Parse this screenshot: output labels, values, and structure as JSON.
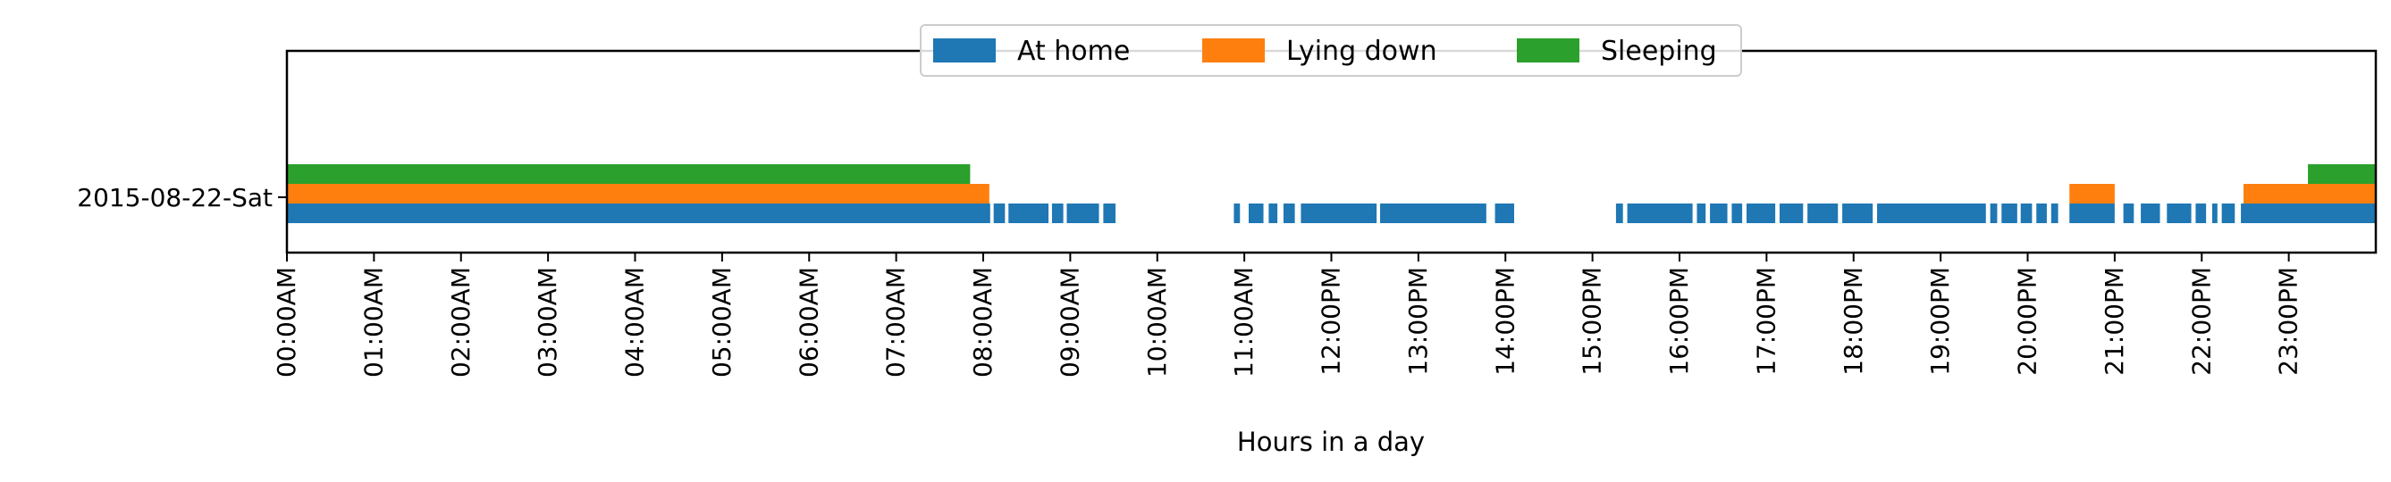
{
  "chart_data": {
    "type": "bar",
    "orientation": "horizontal-timeline",
    "title": "",
    "xlabel": "Hours in a day",
    "ylabel": "",
    "xlim": [
      0,
      24
    ],
    "x_ticks": [
      "00:00AM",
      "01:00AM",
      "02:00AM",
      "03:00AM",
      "04:00AM",
      "05:00AM",
      "06:00AM",
      "07:00AM",
      "08:00AM",
      "09:00AM",
      "10:00AM",
      "11:00AM",
      "12:00PM",
      "13:00PM",
      "14:00PM",
      "15:00PM",
      "16:00PM",
      "17:00PM",
      "18:00PM",
      "19:00PM",
      "20:00PM",
      "21:00PM",
      "22:00PM",
      "23:00PM"
    ],
    "categories": [
      "2015-08-22-Sat"
    ],
    "grid": false,
    "legend_position": "top-center",
    "series": [
      {
        "name": "At home",
        "color": "#1f77b4",
        "intervals": [
          [
            0.0,
            8.08
          ],
          [
            8.12,
            8.25
          ],
          [
            8.29,
            8.75
          ],
          [
            8.79,
            8.92
          ],
          [
            8.96,
            9.33
          ],
          [
            9.38,
            9.52
          ],
          [
            10.88,
            10.95
          ],
          [
            11.05,
            11.22
          ],
          [
            11.28,
            11.38
          ],
          [
            11.45,
            11.58
          ],
          [
            11.65,
            12.52
          ],
          [
            12.56,
            13.78
          ],
          [
            13.88,
            14.1
          ],
          [
            15.27,
            15.35
          ],
          [
            15.4,
            16.15
          ],
          [
            16.2,
            16.3
          ],
          [
            16.35,
            16.55
          ],
          [
            16.6,
            16.72
          ],
          [
            16.77,
            17.1
          ],
          [
            17.15,
            17.42
          ],
          [
            17.47,
            17.82
          ],
          [
            17.87,
            18.22
          ],
          [
            18.27,
            19.52
          ],
          [
            19.57,
            19.65
          ],
          [
            19.7,
            19.88
          ],
          [
            19.92,
            20.05
          ],
          [
            20.1,
            20.22
          ],
          [
            20.27,
            20.35
          ],
          [
            20.48,
            21.0
          ],
          [
            21.1,
            21.22
          ],
          [
            21.3,
            21.52
          ],
          [
            21.6,
            21.88
          ],
          [
            21.93,
            22.05
          ],
          [
            22.12,
            22.18
          ],
          [
            22.23,
            22.38
          ],
          [
            22.45,
            24.0
          ]
        ]
      },
      {
        "name": "Lying down",
        "color": "#ff7f0e",
        "intervals": [
          [
            0.0,
            8.07
          ],
          [
            20.48,
            21.0
          ],
          [
            22.48,
            24.0
          ]
        ]
      },
      {
        "name": "Sleeping",
        "color": "#2ca02c",
        "intervals": [
          [
            0.0,
            7.85
          ],
          [
            23.22,
            24.0
          ]
        ]
      }
    ]
  }
}
